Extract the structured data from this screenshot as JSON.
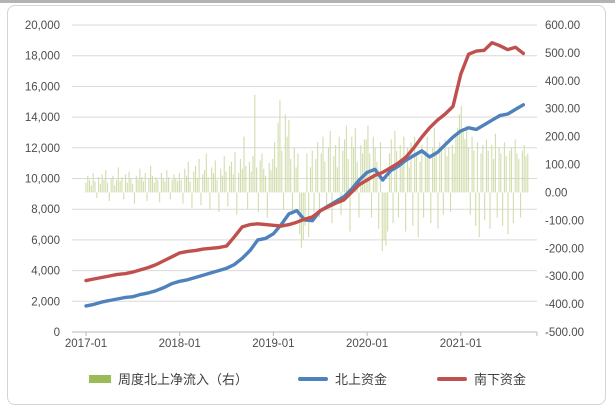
{
  "page": {
    "background_color": "#ffffff",
    "frame_border_color": "#d4d4d4"
  },
  "chart_data": {
    "type": "combo",
    "title": "",
    "grid": true,
    "legend_position": "bottom",
    "left_axis": {
      "min": 0,
      "max": 20000,
      "step": 2000,
      "tick_labels": [
        "0",
        "2,000",
        "4,000",
        "6,000",
        "8,000",
        "10,000",
        "12,000",
        "14,000",
        "16,000",
        "18,000",
        "20,000"
      ],
      "label_color": "#4d4d4d"
    },
    "right_axis": {
      "min": -500,
      "max": 600,
      "step": 100,
      "tick_labels": [
        "-500.00",
        "-400.00",
        "-300.00",
        "-200.00",
        "-100.00",
        "0.00",
        "100.00",
        "200.00",
        "300.00",
        "400.00",
        "500.00",
        "600.00"
      ],
      "label_color": "#4d4d4d"
    },
    "x_axis": {
      "tick_labels": [
        "2017-01",
        "2018-01",
        "2019-01",
        "2020-01",
        "2021-01"
      ],
      "label_color": "#4d4d4d",
      "axis_color": "#b8b8b8",
      "grid_color": "#d9d9d9"
    },
    "series": [
      {
        "name": "周度北上净流入（右）",
        "type": "bar",
        "axis": "right",
        "frequency": "weekly",
        "start": "2017-01",
        "color": "#ccd9a4",
        "legend_color": "#9bbb59",
        "values": [
          35,
          60,
          45,
          25,
          70,
          40,
          -20,
          55,
          30,
          65,
          45,
          80,
          35,
          -30,
          50,
          60,
          25,
          45,
          90,
          40,
          55,
          -25,
          65,
          35,
          75,
          50,
          30,
          -40,
          60,
          45,
          85,
          55,
          40,
          70,
          -30,
          50,
          95,
          60,
          35,
          55,
          45,
          -35,
          70,
          50,
          40,
          80,
          55,
          -25,
          45,
          65,
          50,
          40,
          70,
          45,
          -40,
          85,
          60,
          110,
          40,
          -55,
          75,
          95,
          50,
          120,
          -45,
          65,
          80,
          140,
          55,
          -60,
          90,
          70,
          115,
          45,
          -70,
          85,
          60,
          130,
          75,
          -50,
          95,
          110,
          65,
          145,
          -80,
          70,
          120,
          85,
          200,
          95,
          -60,
          110,
          75,
          130,
          350,
          90,
          -70,
          115,
          140,
          85,
          60,
          -90,
          105,
          80,
          120,
          180,
          90,
          250,
          330,
          150,
          -60,
          280,
          200,
          260,
          120,
          -80,
          160,
          90,
          140,
          -150,
          -200,
          -170,
          -120,
          140,
          -160,
          90,
          150,
          -70,
          120,
          180,
          -90,
          140,
          200,
          110,
          -60,
          160,
          220,
          -110,
          130,
          170,
          90,
          200,
          -80,
          150,
          190,
          240,
          120,
          -140,
          200,
          160,
          230,
          110,
          -90,
          170,
          140,
          190,
          190,
          240,
          140,
          -90,
          200,
          160,
          110,
          -130,
          180,
          -210,
          -170,
          -190,
          -140,
          140,
          190,
          -110,
          220,
          150,
          -90,
          170,
          120,
          200,
          -140,
          160,
          90,
          180,
          -120,
          200,
          140,
          -160,
          110,
          170,
          -90,
          150,
          200,
          120,
          -110,
          160,
          230,
          140,
          -130,
          180,
          150,
          -80,
          190,
          130,
          160,
          -70,
          170,
          140,
          210,
          230,
          280,
          310,
          230,
          190,
          240,
          160,
          -80,
          200,
          150,
          -120,
          180,
          -160,
          140,
          170,
          -100,
          190,
          150,
          -130,
          170,
          120,
          210,
          -90,
          160,
          140,
          -120,
          180,
          130,
          -150,
          150,
          160,
          -110,
          190,
          140,
          120,
          -90,
          150,
          170,
          130,
          140
        ]
      },
      {
        "name": "北上资金",
        "type": "line",
        "axis": "left",
        "frequency": "monthly",
        "start": "2017-01",
        "color": "#4f81bd",
        "values": [
          1700,
          1800,
          1950,
          2050,
          2150,
          2250,
          2300,
          2450,
          2550,
          2700,
          2900,
          3150,
          3300,
          3400,
          3550,
          3700,
          3850,
          4000,
          4150,
          4400,
          4800,
          5300,
          6000,
          6100,
          6400,
          7000,
          7700,
          7900,
          7300,
          7250,
          7900,
          8200,
          8500,
          8800,
          9300,
          9900,
          10400,
          10600,
          9900,
          10500,
          10800,
          11200,
          11500,
          11800,
          11400,
          11700,
          12200,
          12700,
          13100,
          13300,
          13200,
          13500,
          13800,
          14100,
          14200,
          14500,
          14800
        ]
      },
      {
        "name": "南下资金",
        "type": "line",
        "axis": "left",
        "frequency": "monthly",
        "start": "2017-01",
        "color": "#c0504d",
        "values": [
          3350,
          3450,
          3550,
          3650,
          3750,
          3800,
          3900,
          4050,
          4200,
          4400,
          4650,
          4900,
          5150,
          5250,
          5300,
          5400,
          5450,
          5500,
          5600,
          6200,
          6850,
          7000,
          7050,
          7000,
          6950,
          6900,
          7000,
          7150,
          7350,
          7500,
          7900,
          8150,
          8400,
          8600,
          9100,
          9600,
          9900,
          10200,
          10400,
          10700,
          11000,
          11400,
          12000,
          12700,
          13300,
          13800,
          14200,
          14700,
          16800,
          18100,
          18300,
          18350,
          18850,
          18650,
          18400,
          18550,
          18150
        ]
      }
    ]
  }
}
